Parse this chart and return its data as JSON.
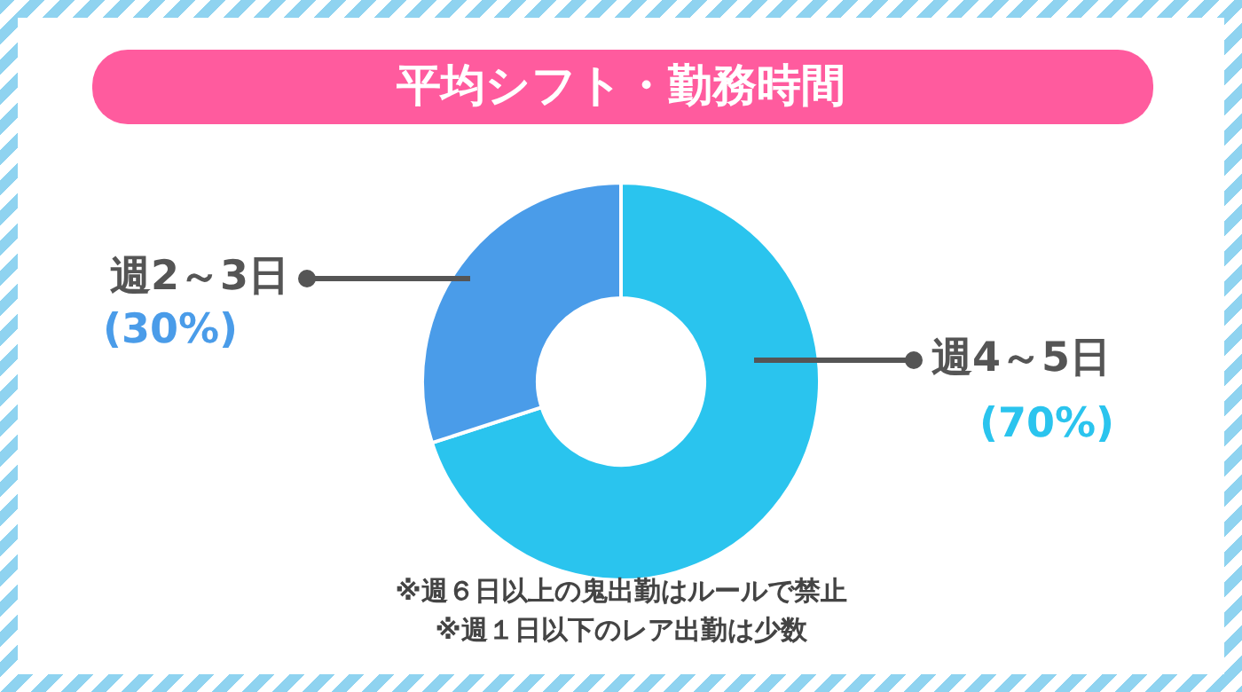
{
  "chart_data": {
    "type": "donut",
    "title": "平均シフト・勤務時間",
    "categories": [
      "週4～5日",
      "週2～3日"
    ],
    "values": [
      70,
      30
    ],
    "colors": [
      "#2ac4ee",
      "#4a9ce9"
    ],
    "value_labels": [
      "(70%)",
      "(30%)"
    ],
    "legend": false,
    "annotations": [
      "※週６日以上の鬼出勤はルールで禁止",
      "※週１日以下のレア出勤は少数"
    ]
  }
}
